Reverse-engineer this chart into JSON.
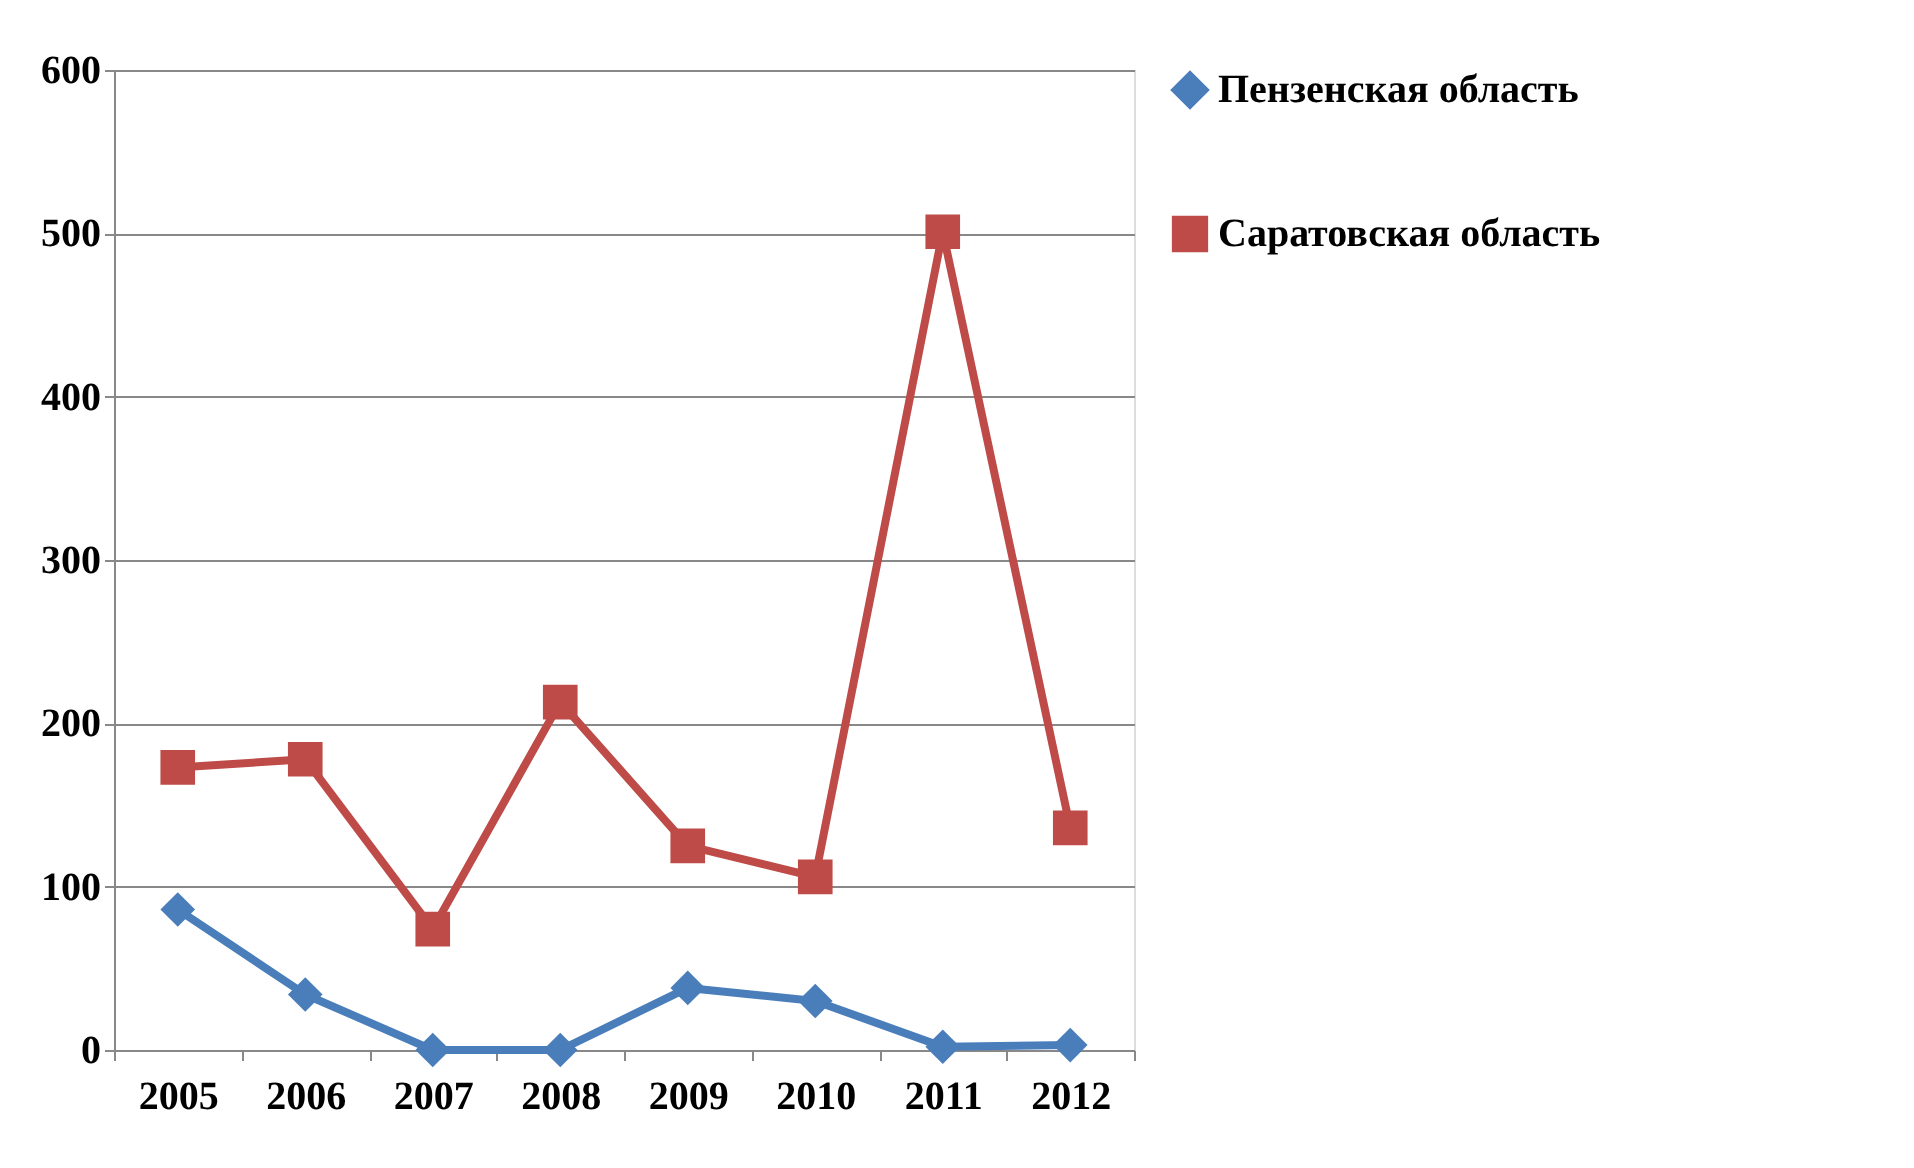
{
  "chart_data": {
    "type": "line",
    "categories": [
      "2005",
      "2006",
      "2007",
      "2008",
      "2009",
      "2010",
      "2011",
      "2012"
    ],
    "series": [
      {
        "name": "Пензенская область",
        "color": "#4a7ebb",
        "marker": "diamond",
        "values": [
          86,
          34,
          0,
          0,
          38,
          30,
          2,
          3
        ]
      },
      {
        "name": "Саратовская область",
        "color": "#be4b48",
        "marker": "square",
        "values": [
          173,
          178,
          74,
          213,
          125,
          106,
          501,
          136
        ]
      }
    ],
    "ylim": [
      0,
      600
    ],
    "yticks": [
      0,
      100,
      200,
      300,
      400,
      500,
      600
    ],
    "grid": "y",
    "legend": "right",
    "line_style": "solid"
  }
}
